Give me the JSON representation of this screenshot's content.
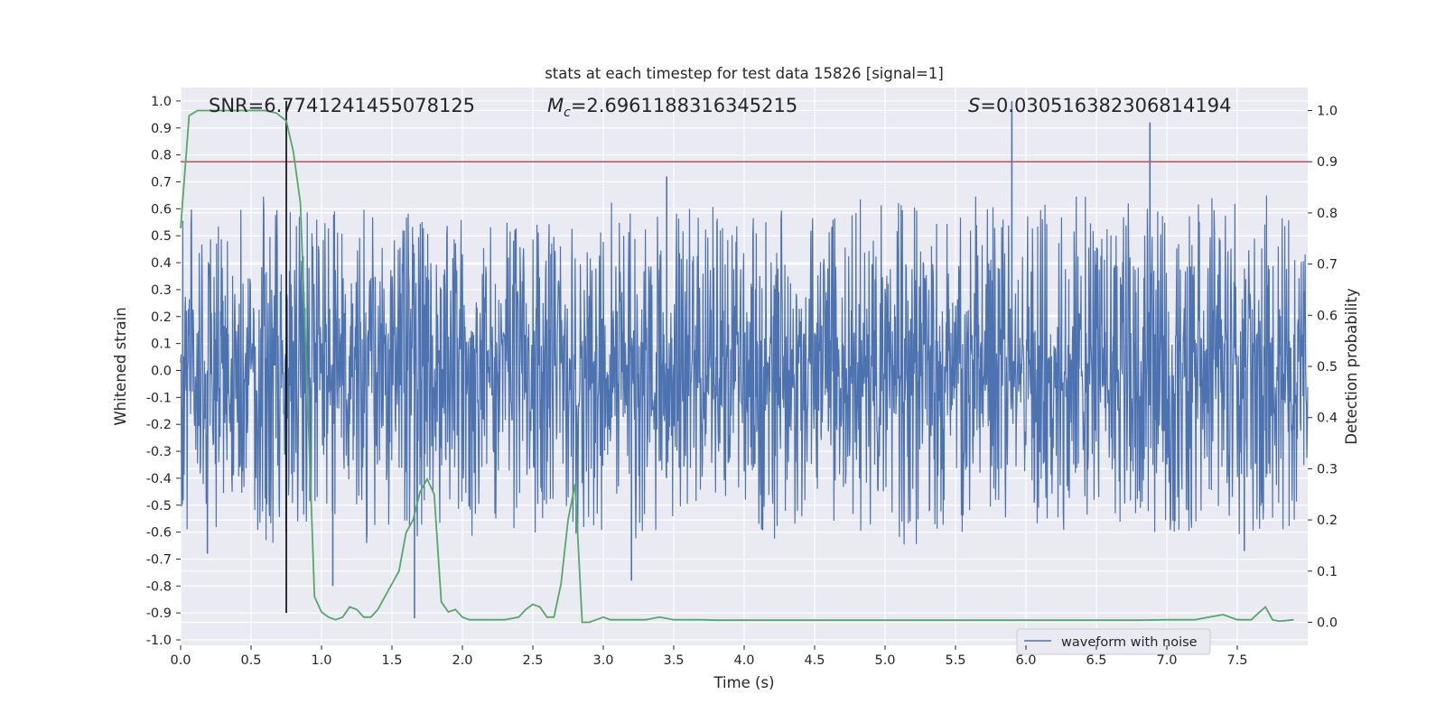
{
  "chart_data": {
    "type": "line",
    "title": "stats at each timestep for test data 15826 [signal=1]",
    "xlabel": "Time (s)",
    "ylabel": "Whitened strain",
    "y2label": "Detection probability",
    "xlim": [
      0.0,
      8.0
    ],
    "ylim": [
      -1.02,
      1.05
    ],
    "y2lim": [
      -0.045,
      1.045
    ],
    "xticks": [
      "0.0",
      "0.5",
      "1.0",
      "1.5",
      "2.0",
      "2.5",
      "3.0",
      "3.5",
      "4.0",
      "4.5",
      "5.0",
      "5.5",
      "6.0",
      "6.5",
      "7.0",
      "7.5"
    ],
    "xtick_values": [
      0.0,
      0.5,
      1.0,
      1.5,
      2.0,
      2.5,
      3.0,
      3.5,
      4.0,
      4.5,
      5.0,
      5.5,
      6.0,
      6.5,
      7.0,
      7.5
    ],
    "yticks": [
      "1.0",
      "0.9",
      "0.8",
      "0.7",
      "0.6",
      "0.5",
      "0.4",
      "0.3",
      "0.2",
      "0.1",
      "0.0",
      "-0.1",
      "-0.2",
      "-0.3",
      "-0.4",
      "-0.5",
      "-0.6",
      "-0.7",
      "-0.8",
      "-0.9",
      "-1.0"
    ],
    "ytick_values": [
      1.0,
      0.9,
      0.8,
      0.7,
      0.6,
      0.5,
      0.4,
      0.3,
      0.2,
      0.1,
      0.0,
      -0.1,
      -0.2,
      -0.3,
      -0.4,
      -0.5,
      -0.6,
      -0.7,
      -0.8,
      -0.9,
      -1.0
    ],
    "y2ticks": [
      "1.0",
      "0.9",
      "0.8",
      "0.7",
      "0.6",
      "0.5",
      "0.4",
      "0.3",
      "0.2",
      "0.1",
      "0.0"
    ],
    "y2tick_values": [
      1.0,
      0.9,
      0.8,
      0.7,
      0.6,
      0.5,
      0.4,
      0.3,
      0.2,
      0.1,
      0.0
    ],
    "grid": true,
    "annotations": {
      "snr": "SNR=6.7741241455078125",
      "mc_prefix": "M",
      "mc_sub": "c",
      "mc_value": "=2.6961188316345215",
      "s_prefix": "S",
      "s_value": "=0.030516382306814194"
    },
    "legend": {
      "label": "waveform with noise",
      "placement": "lower-right"
    },
    "series": [
      {
        "name": "waveform with noise",
        "axis": "left",
        "color": "#4c72b0",
        "kind": "noise-waveform",
        "duration": 8.0,
        "dense_band": [
          -0.15,
          0.23
        ],
        "typical_peak": [
          0.4,
          0.6
        ],
        "spikes": [
          {
            "t": 5.9,
            "v": 1.0
          },
          {
            "t": 6.88,
            "v": 0.92
          },
          {
            "t": 1.08,
            "v": -0.8
          },
          {
            "t": 1.66,
            "v": -0.92
          },
          {
            "t": 3.2,
            "v": -0.78
          },
          {
            "t": 7.55,
            "v": -0.67
          },
          {
            "t": 0.19,
            "v": -0.68
          },
          {
            "t": 3.45,
            "v": 0.72
          }
        ]
      },
      {
        "name": "",
        "axis": "right",
        "color": "#55a868",
        "kind": "line",
        "x": [
          0.0,
          0.06,
          0.12,
          0.2,
          0.3,
          0.4,
          0.5,
          0.6,
          0.68,
          0.75,
          0.8,
          0.85,
          0.9,
          0.95,
          1.0,
          1.05,
          1.1,
          1.15,
          1.2,
          1.25,
          1.3,
          1.35,
          1.4,
          1.45,
          1.5,
          1.55,
          1.6,
          1.65,
          1.7,
          1.75,
          1.8,
          1.85,
          1.9,
          1.95,
          2.0,
          2.05,
          2.1,
          2.2,
          2.3,
          2.4,
          2.45,
          2.5,
          2.55,
          2.6,
          2.65,
          2.7,
          2.75,
          2.8,
          2.85,
          2.9,
          2.95,
          3.0,
          3.05,
          3.1,
          3.15,
          3.2,
          3.3,
          3.4,
          3.5,
          3.6,
          3.7,
          3.8,
          3.9,
          4.0,
          4.2,
          4.4,
          4.6,
          4.8,
          5.0,
          5.2,
          5.4,
          5.6,
          5.8,
          6.0,
          6.2,
          6.4,
          6.6,
          6.8,
          7.0,
          7.2,
          7.3,
          7.4,
          7.5,
          7.6,
          7.65,
          7.7,
          7.75,
          7.8,
          7.9
        ],
        "y": [
          0.77,
          0.99,
          1.0,
          1.0,
          1.0,
          1.0,
          1.0,
          1.0,
          0.995,
          0.98,
          0.92,
          0.82,
          0.45,
          0.05,
          0.02,
          0.01,
          0.005,
          0.01,
          0.03,
          0.025,
          0.01,
          0.01,
          0.025,
          0.05,
          0.075,
          0.1,
          0.175,
          0.2,
          0.255,
          0.28,
          0.25,
          0.04,
          0.02,
          0.025,
          0.01,
          0.005,
          0.005,
          0.005,
          0.005,
          0.01,
          0.025,
          0.035,
          0.03,
          0.01,
          0.01,
          0.075,
          0.2,
          0.27,
          0.0,
          0.0,
          0.005,
          0.01,
          0.005,
          0.005,
          0.005,
          0.005,
          0.005,
          0.01,
          0.005,
          0.005,
          0.005,
          0.004,
          0.004,
          0.004,
          0.004,
          0.004,
          0.004,
          0.004,
          0.004,
          0.004,
          0.004,
          0.004,
          0.004,
          0.004,
          0.004,
          0.004,
          0.004,
          0.004,
          0.005,
          0.005,
          0.01,
          0.015,
          0.005,
          0.005,
          0.018,
          0.03,
          0.005,
          0.002,
          0.005
        ]
      }
    ],
    "reference_lines": [
      {
        "kind": "hline",
        "axis": "right",
        "value": 0.9,
        "color": "#c44e52"
      },
      {
        "kind": "vline",
        "axis": "left",
        "x": 0.75,
        "ymin": -0.9,
        "ymax": 1.0,
        "color": "#000000"
      }
    ]
  }
}
